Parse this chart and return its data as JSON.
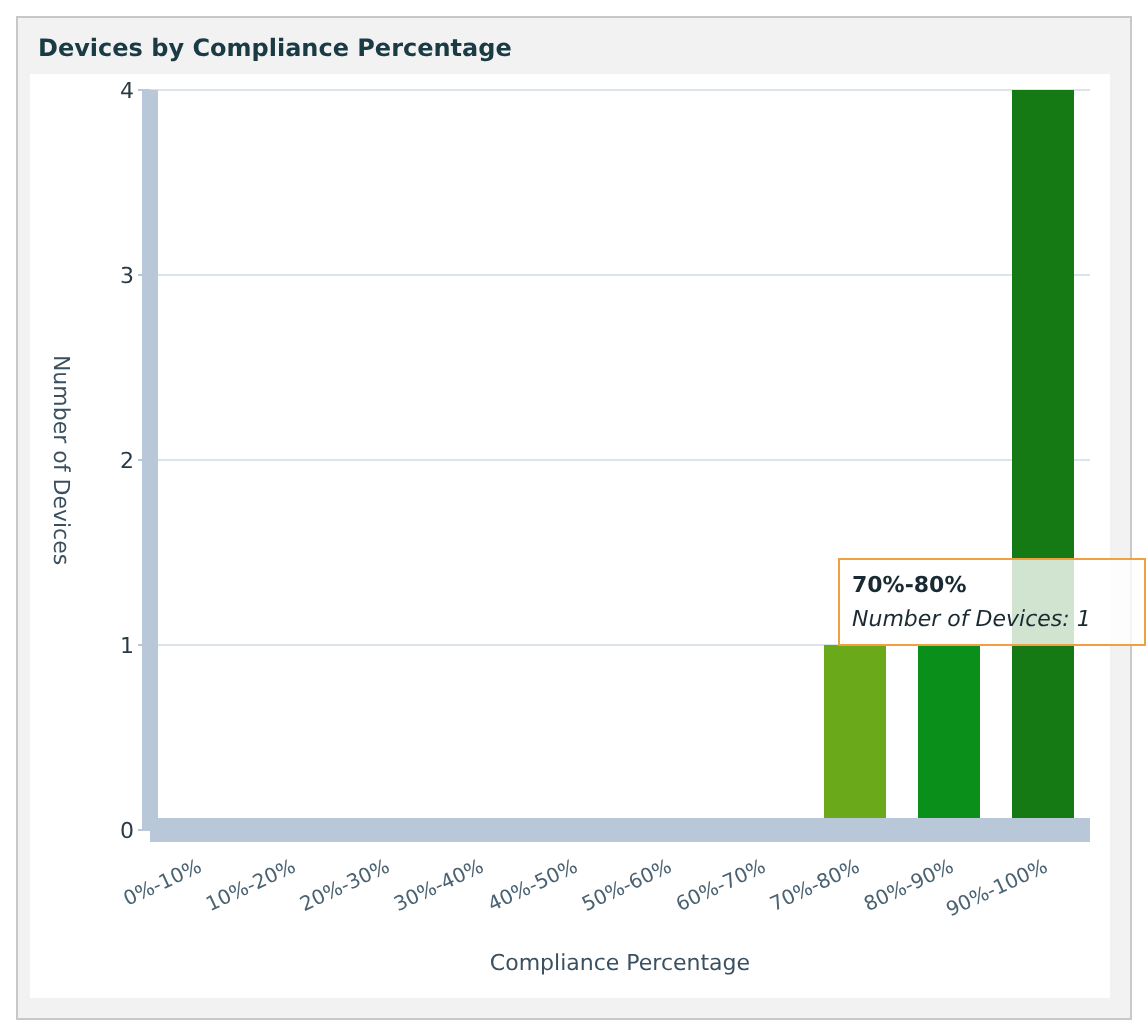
{
  "chart_data": {
    "type": "bar",
    "title": "Devices by Compliance Percentage",
    "xlabel": "Compliance Percentage",
    "ylabel": "Number of Devices",
    "categories": [
      "0%-10%",
      "10%-20%",
      "20%-30%",
      "30%-40%",
      "40%-50%",
      "50%-60%",
      "60%-70%",
      "70%-80%",
      "80%-90%",
      "90%-100%"
    ],
    "values": [
      0,
      0,
      0,
      0,
      0,
      0,
      0,
      1,
      1,
      4
    ],
    "colors": [
      "#6aaa1a",
      "#6aaa1a",
      "#6aaa1a",
      "#6aaa1a",
      "#6aaa1a",
      "#6aaa1a",
      "#6aaa1a",
      "#6aaa1a",
      "#0a8f1a",
      "#157a14"
    ],
    "ylim": [
      0,
      4
    ],
    "yticks": [
      0,
      1,
      2,
      3,
      4
    ],
    "grid": "y",
    "legend": false,
    "annotations": [
      "70%-80%",
      "Number of Devices:  1"
    ]
  }
}
